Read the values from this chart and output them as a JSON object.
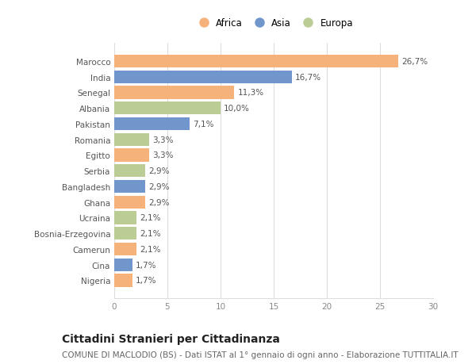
{
  "countries": [
    "Nigeria",
    "Cina",
    "Camerun",
    "Bosnia-Erzegovina",
    "Ucraina",
    "Ghana",
    "Bangladesh",
    "Serbia",
    "Egitto",
    "Romania",
    "Pakistan",
    "Albania",
    "Senegal",
    "India",
    "Marocco"
  ],
  "values": [
    1.7,
    1.7,
    2.1,
    2.1,
    2.1,
    2.9,
    2.9,
    2.9,
    3.3,
    3.3,
    7.1,
    10.0,
    11.3,
    16.7,
    26.7
  ],
  "labels": [
    "1,7%",
    "1,7%",
    "2,1%",
    "2,1%",
    "2,1%",
    "2,9%",
    "2,9%",
    "2,9%",
    "3,3%",
    "3,3%",
    "7,1%",
    "10,0%",
    "11,3%",
    "16,7%",
    "26,7%"
  ],
  "continents": [
    "Africa",
    "Asia",
    "Africa",
    "Europa",
    "Europa",
    "Africa",
    "Asia",
    "Europa",
    "Africa",
    "Europa",
    "Asia",
    "Europa",
    "Africa",
    "Asia",
    "Africa"
  ],
  "continent_colors": {
    "Africa": "#F5B27A",
    "Asia": "#7196CB",
    "Europa": "#BBCC94"
  },
  "legend_labels": [
    "Africa",
    "Asia",
    "Europa"
  ],
  "title": "Cittadini Stranieri per Cittadinanza",
  "subtitle": "COMUNE DI MACLODIO (BS) - Dati ISTAT al 1° gennaio di ogni anno - Elaborazione TUTTITALIA.IT",
  "xlim": [
    0,
    30
  ],
  "xticks": [
    0,
    5,
    10,
    15,
    20,
    25,
    30
  ],
  "background_color": "#ffffff",
  "grid_color": "#dddddd",
  "bar_height": 0.82,
  "title_fontsize": 10,
  "subtitle_fontsize": 7.5,
  "label_fontsize": 7.5,
  "tick_fontsize": 7.5,
  "legend_fontsize": 8.5
}
